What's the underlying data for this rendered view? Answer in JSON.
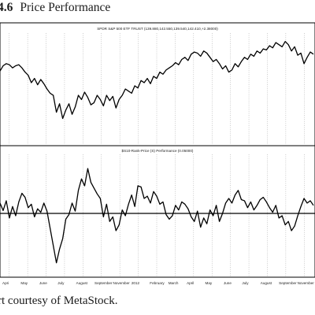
{
  "figure": {
    "number": "4.6",
    "title": "Price Performance",
    "caption": "rt courtesy of MetaStock."
  },
  "colors": {
    "line": "#000000",
    "grid": "#9a9a9a",
    "frame": "#000000",
    "background": "#ffffff"
  },
  "chart_data": [
    {
      "type": "line",
      "title": "SPDR S&P 500 ETF TRUST (139.880,142.550,139.540,142.410,+2.38000)",
      "grid": true,
      "ylim": [
        0,
        100
      ],
      "x_labels": [
        "Apri",
        "May",
        "June",
        "July",
        "August",
        "September",
        "November",
        "2012",
        "February",
        "March",
        "April",
        "May",
        "June",
        "July",
        "August",
        "September",
        "November"
      ],
      "series": [
        {
          "values": [
            67,
            72,
            74,
            73,
            70,
            72,
            73,
            70,
            66,
            63,
            56,
            60,
            54,
            59,
            55,
            50,
            46,
            44,
            28,
            36,
            22,
            30,
            36,
            26,
            33,
            44,
            40,
            47,
            42,
            35,
            37,
            44,
            40,
            34,
            44,
            39,
            43,
            32,
            40,
            44,
            50,
            48,
            46,
            53,
            51,
            58,
            56,
            60,
            55,
            62,
            60,
            66,
            64,
            68,
            70,
            72,
            75,
            73,
            78,
            80,
            77,
            83,
            85,
            84,
            81,
            86,
            84,
            80,
            76,
            78,
            74,
            69,
            72,
            66,
            68,
            74,
            71,
            76,
            80,
            78,
            83,
            81,
            86,
            84,
            88,
            87,
            91,
            89,
            94,
            92,
            90,
            95,
            92,
            86,
            90,
            82,
            84,
            74,
            80,
            85,
            83
          ]
        }
      ]
    },
    {
      "type": "line",
      "title": "$S10-Rank-Price (S) Performance (0.05000)",
      "grid": true,
      "ylim": [
        -100,
        100
      ],
      "reference_line": 0,
      "x_labels": [
        "Apri",
        "May",
        "June",
        "July",
        "August",
        "September",
        "November",
        "2012",
        "February",
        "March",
        "April",
        "May",
        "June",
        "July",
        "August",
        "September",
        "November"
      ],
      "series": [
        {
          "values": [
            18,
            5,
            22,
            -8,
            12,
            -4,
            20,
            35,
            28,
            10,
            16,
            -6,
            8,
            2,
            18,
            4,
            -26,
            -56,
            -86,
            -62,
            -44,
            -10,
            -2,
            18,
            4,
            40,
            60,
            48,
            78,
            54,
            44,
            34,
            26,
            -6,
            16,
            -14,
            -6,
            -30,
            -20,
            6,
            -4,
            16,
            32,
            12,
            48,
            46,
            26,
            30,
            18,
            38,
            30,
            16,
            20,
            -2,
            -10,
            -4,
            14,
            6,
            20,
            16,
            8,
            -6,
            -14,
            4,
            -24,
            -8,
            -18,
            6,
            -4,
            14,
            -14,
            0,
            18,
            26,
            18,
            32,
            40,
            24,
            22,
            10,
            20,
            6,
            14,
            24,
            28,
            20,
            10,
            2,
            14,
            -8,
            -4,
            -20,
            -14,
            -30,
            -22,
            -4,
            12,
            26,
            18,
            22,
            14
          ]
        }
      ]
    }
  ]
}
